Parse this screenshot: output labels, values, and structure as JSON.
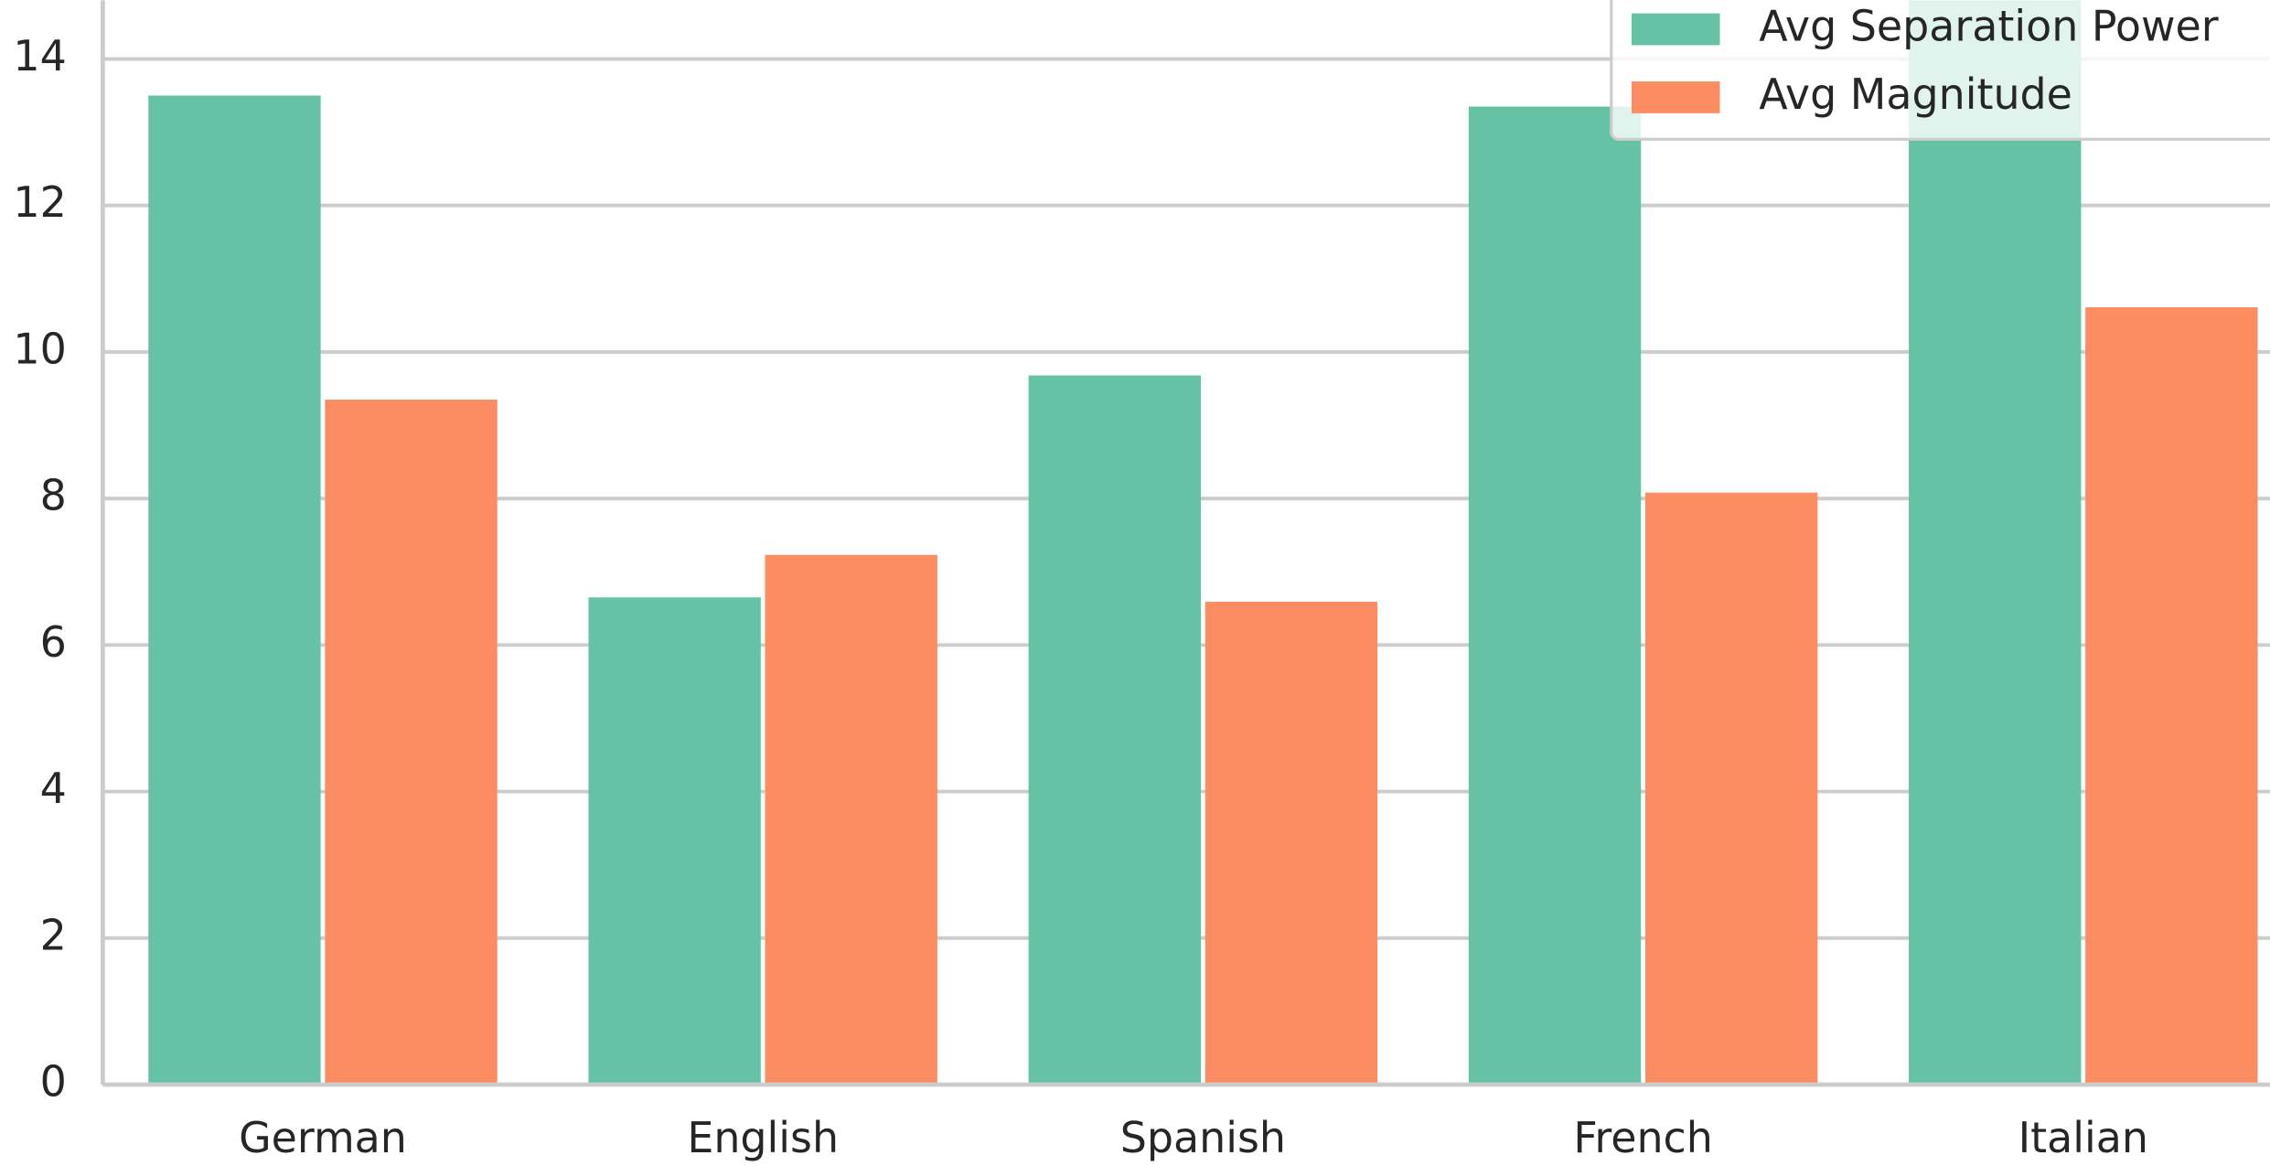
{
  "chart_data": {
    "type": "bar",
    "categories": [
      "German",
      "English",
      "Spanish",
      "French",
      "Italian"
    ],
    "series": [
      {
        "name": "Avg Separation Power",
        "color": "#66c2a5",
        "values": [
          13.5,
          6.65,
          9.68,
          13.35,
          15.0
        ]
      },
      {
        "name": "Avg Magnitude",
        "color": "#fc8d62",
        "values": [
          9.35,
          7.23,
          6.59,
          8.08,
          10.61
        ]
      }
    ],
    "ylim": [
      0,
      14.8
    ],
    "yticks": [
      0,
      2,
      4,
      6,
      8,
      10,
      12,
      14
    ],
    "grid": true,
    "legend": "upper right"
  }
}
